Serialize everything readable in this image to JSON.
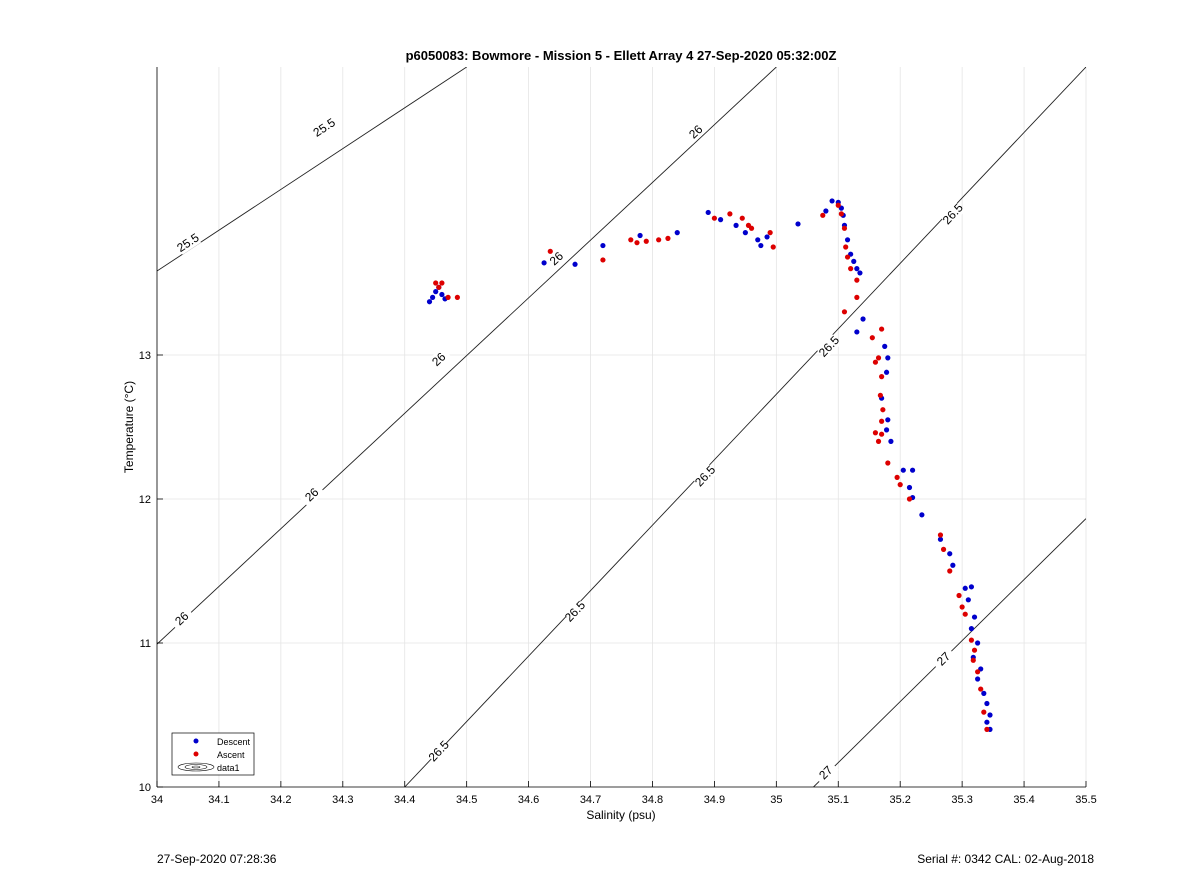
{
  "chart_data": {
    "type": "scatter",
    "title": "p6050083: Bowmore - Mission 5 - Ellett Array 4 27-Sep-2020 05:32:00Z",
    "xlabel": "Salinity (psu)",
    "ylabel": "Temperature (°C)",
    "xlim": [
      34,
      35.5
    ],
    "ylim": [
      10,
      15
    ],
    "x_ticks": [
      "34",
      "34.1",
      "34.2",
      "34.3",
      "34.4",
      "34.5",
      "34.6",
      "34.7",
      "34.8",
      "34.9",
      "35",
      "35.1",
      "35.2",
      "35.3",
      "35.4",
      "35.5"
    ],
    "x_tick_values": [
      34,
      34.1,
      34.2,
      34.3,
      34.4,
      34.5,
      34.6,
      34.7,
      34.8,
      34.9,
      35,
      35.1,
      35.2,
      35.3,
      35.4,
      35.5
    ],
    "y_ticks": [
      "10",
      "11",
      "12",
      "13"
    ],
    "y_tick_values": [
      10,
      11,
      12,
      13
    ],
    "grid": true,
    "legend_position": "bottom-left",
    "legend": [
      "Descent",
      "Ascent",
      "data1"
    ],
    "series": [
      {
        "name": "Descent",
        "color": "#0000cc",
        "points": [
          [
            34.44,
            13.37
          ],
          [
            34.445,
            13.4
          ],
          [
            34.45,
            13.44
          ],
          [
            34.455,
            13.47
          ],
          [
            34.46,
            13.42
          ],
          [
            34.465,
            13.39
          ],
          [
            34.625,
            13.64
          ],
          [
            34.675,
            13.63
          ],
          [
            34.72,
            13.76
          ],
          [
            34.78,
            13.83
          ],
          [
            34.84,
            13.85
          ],
          [
            34.89,
            13.99
          ],
          [
            34.91,
            13.94
          ],
          [
            34.935,
            13.9
          ],
          [
            34.95,
            13.85
          ],
          [
            34.97,
            13.8
          ],
          [
            34.975,
            13.76
          ],
          [
            34.985,
            13.82
          ],
          [
            35.035,
            13.91
          ],
          [
            35.08,
            14.0
          ],
          [
            35.09,
            14.07
          ],
          [
            35.1,
            14.06
          ],
          [
            35.105,
            14.02
          ],
          [
            35.108,
            13.97
          ],
          [
            35.11,
            13.9
          ],
          [
            35.115,
            13.8
          ],
          [
            35.12,
            13.7
          ],
          [
            35.125,
            13.65
          ],
          [
            35.13,
            13.6
          ],
          [
            35.135,
            13.57
          ],
          [
            35.14,
            13.25
          ],
          [
            35.13,
            13.16
          ],
          [
            35.175,
            13.06
          ],
          [
            35.18,
            12.98
          ],
          [
            35.178,
            12.88
          ],
          [
            35.17,
            12.7
          ],
          [
            35.18,
            12.55
          ],
          [
            35.178,
            12.48
          ],
          [
            35.185,
            12.4
          ],
          [
            35.205,
            12.2
          ],
          [
            35.22,
            12.2
          ],
          [
            35.215,
            12.08
          ],
          [
            35.22,
            12.01
          ],
          [
            35.235,
            11.89
          ],
          [
            35.265,
            11.72
          ],
          [
            35.28,
            11.62
          ],
          [
            35.285,
            11.54
          ],
          [
            35.305,
            11.38
          ],
          [
            35.315,
            11.39
          ],
          [
            35.31,
            11.3
          ],
          [
            35.32,
            11.18
          ],
          [
            35.315,
            11.1
          ],
          [
            35.325,
            11.0
          ],
          [
            35.318,
            10.9
          ],
          [
            35.33,
            10.82
          ],
          [
            35.325,
            10.75
          ],
          [
            35.335,
            10.65
          ],
          [
            35.34,
            10.58
          ],
          [
            35.345,
            10.5
          ],
          [
            35.34,
            10.45
          ],
          [
            35.345,
            10.4
          ]
        ]
      },
      {
        "name": "Ascent",
        "color": "#dd0000",
        "points": [
          [
            34.45,
            13.5
          ],
          [
            34.455,
            13.47
          ],
          [
            34.46,
            13.5
          ],
          [
            34.47,
            13.4
          ],
          [
            34.485,
            13.4
          ],
          [
            34.635,
            13.72
          ],
          [
            34.72,
            13.66
          ],
          [
            34.765,
            13.8
          ],
          [
            34.775,
            13.78
          ],
          [
            34.79,
            13.79
          ],
          [
            34.81,
            13.8
          ],
          [
            34.825,
            13.81
          ],
          [
            34.9,
            13.95
          ],
          [
            34.925,
            13.98
          ],
          [
            34.945,
            13.95
          ],
          [
            34.955,
            13.9
          ],
          [
            34.96,
            13.88
          ],
          [
            34.99,
            13.85
          ],
          [
            34.995,
            13.75
          ],
          [
            35.075,
            13.97
          ],
          [
            35.1,
            14.04
          ],
          [
            35.105,
            13.98
          ],
          [
            35.11,
            13.88
          ],
          [
            35.112,
            13.75
          ],
          [
            35.115,
            13.68
          ],
          [
            35.12,
            13.6
          ],
          [
            35.13,
            13.52
          ],
          [
            35.13,
            13.4
          ],
          [
            35.11,
            13.3
          ],
          [
            35.155,
            13.12
          ],
          [
            35.17,
            13.18
          ],
          [
            35.165,
            12.98
          ],
          [
            35.16,
            12.95
          ],
          [
            35.17,
            12.85
          ],
          [
            35.168,
            12.72
          ],
          [
            35.172,
            12.62
          ],
          [
            35.17,
            12.54
          ],
          [
            35.16,
            12.46
          ],
          [
            35.165,
            12.4
          ],
          [
            35.17,
            12.45
          ],
          [
            35.18,
            12.25
          ],
          [
            35.195,
            12.15
          ],
          [
            35.2,
            12.1
          ],
          [
            35.215,
            12.0
          ],
          [
            35.265,
            11.75
          ],
          [
            35.27,
            11.65
          ],
          [
            35.28,
            11.5
          ],
          [
            35.295,
            11.33
          ],
          [
            35.3,
            11.25
          ],
          [
            35.305,
            11.2
          ],
          [
            35.315,
            11.02
          ],
          [
            35.32,
            10.95
          ],
          [
            35.318,
            10.88
          ],
          [
            35.325,
            10.8
          ],
          [
            35.33,
            10.68
          ],
          [
            35.335,
            10.52
          ],
          [
            35.34,
            10.4
          ]
        ]
      }
    ],
    "contours": [
      {
        "label": "25.5",
        "line": [
          [
            34.0,
            13.583
          ],
          [
            34.5,
            15.0
          ]
        ],
        "label_at": [
          [
            34.05,
            13.78
          ],
          [
            34.27,
            14.58
          ]
        ]
      },
      {
        "label": "26",
        "line": [
          [
            34.0,
            10.992
          ],
          [
            35.0,
            15.0
          ]
        ],
        "label_at": [
          [
            34.04,
            11.17
          ],
          [
            34.25,
            12.03
          ],
          [
            34.455,
            12.97
          ],
          [
            34.645,
            13.67
          ],
          [
            34.87,
            14.55
          ]
        ]
      },
      {
        "label": "26.5",
        "line": [
          [
            34.4,
            10.0
          ],
          [
            35.5,
            15.0
          ]
        ],
        "label_at": [
          [
            34.455,
            10.25
          ],
          [
            34.675,
            11.22
          ],
          [
            34.885,
            12.16
          ],
          [
            35.085,
            13.06
          ],
          [
            35.285,
            13.98
          ]
        ]
      },
      {
        "label": "27",
        "line": [
          [
            35.06,
            10.0
          ],
          [
            35.5,
            11.864
          ]
        ],
        "label_at": [
          [
            35.08,
            10.1
          ],
          [
            35.27,
            10.89
          ]
        ]
      }
    ]
  },
  "footer": {
    "timestamp": "27-Sep-2020 07:28:36",
    "serial_cal": "Serial #: 0342  CAL: 02-Aug-2018"
  }
}
